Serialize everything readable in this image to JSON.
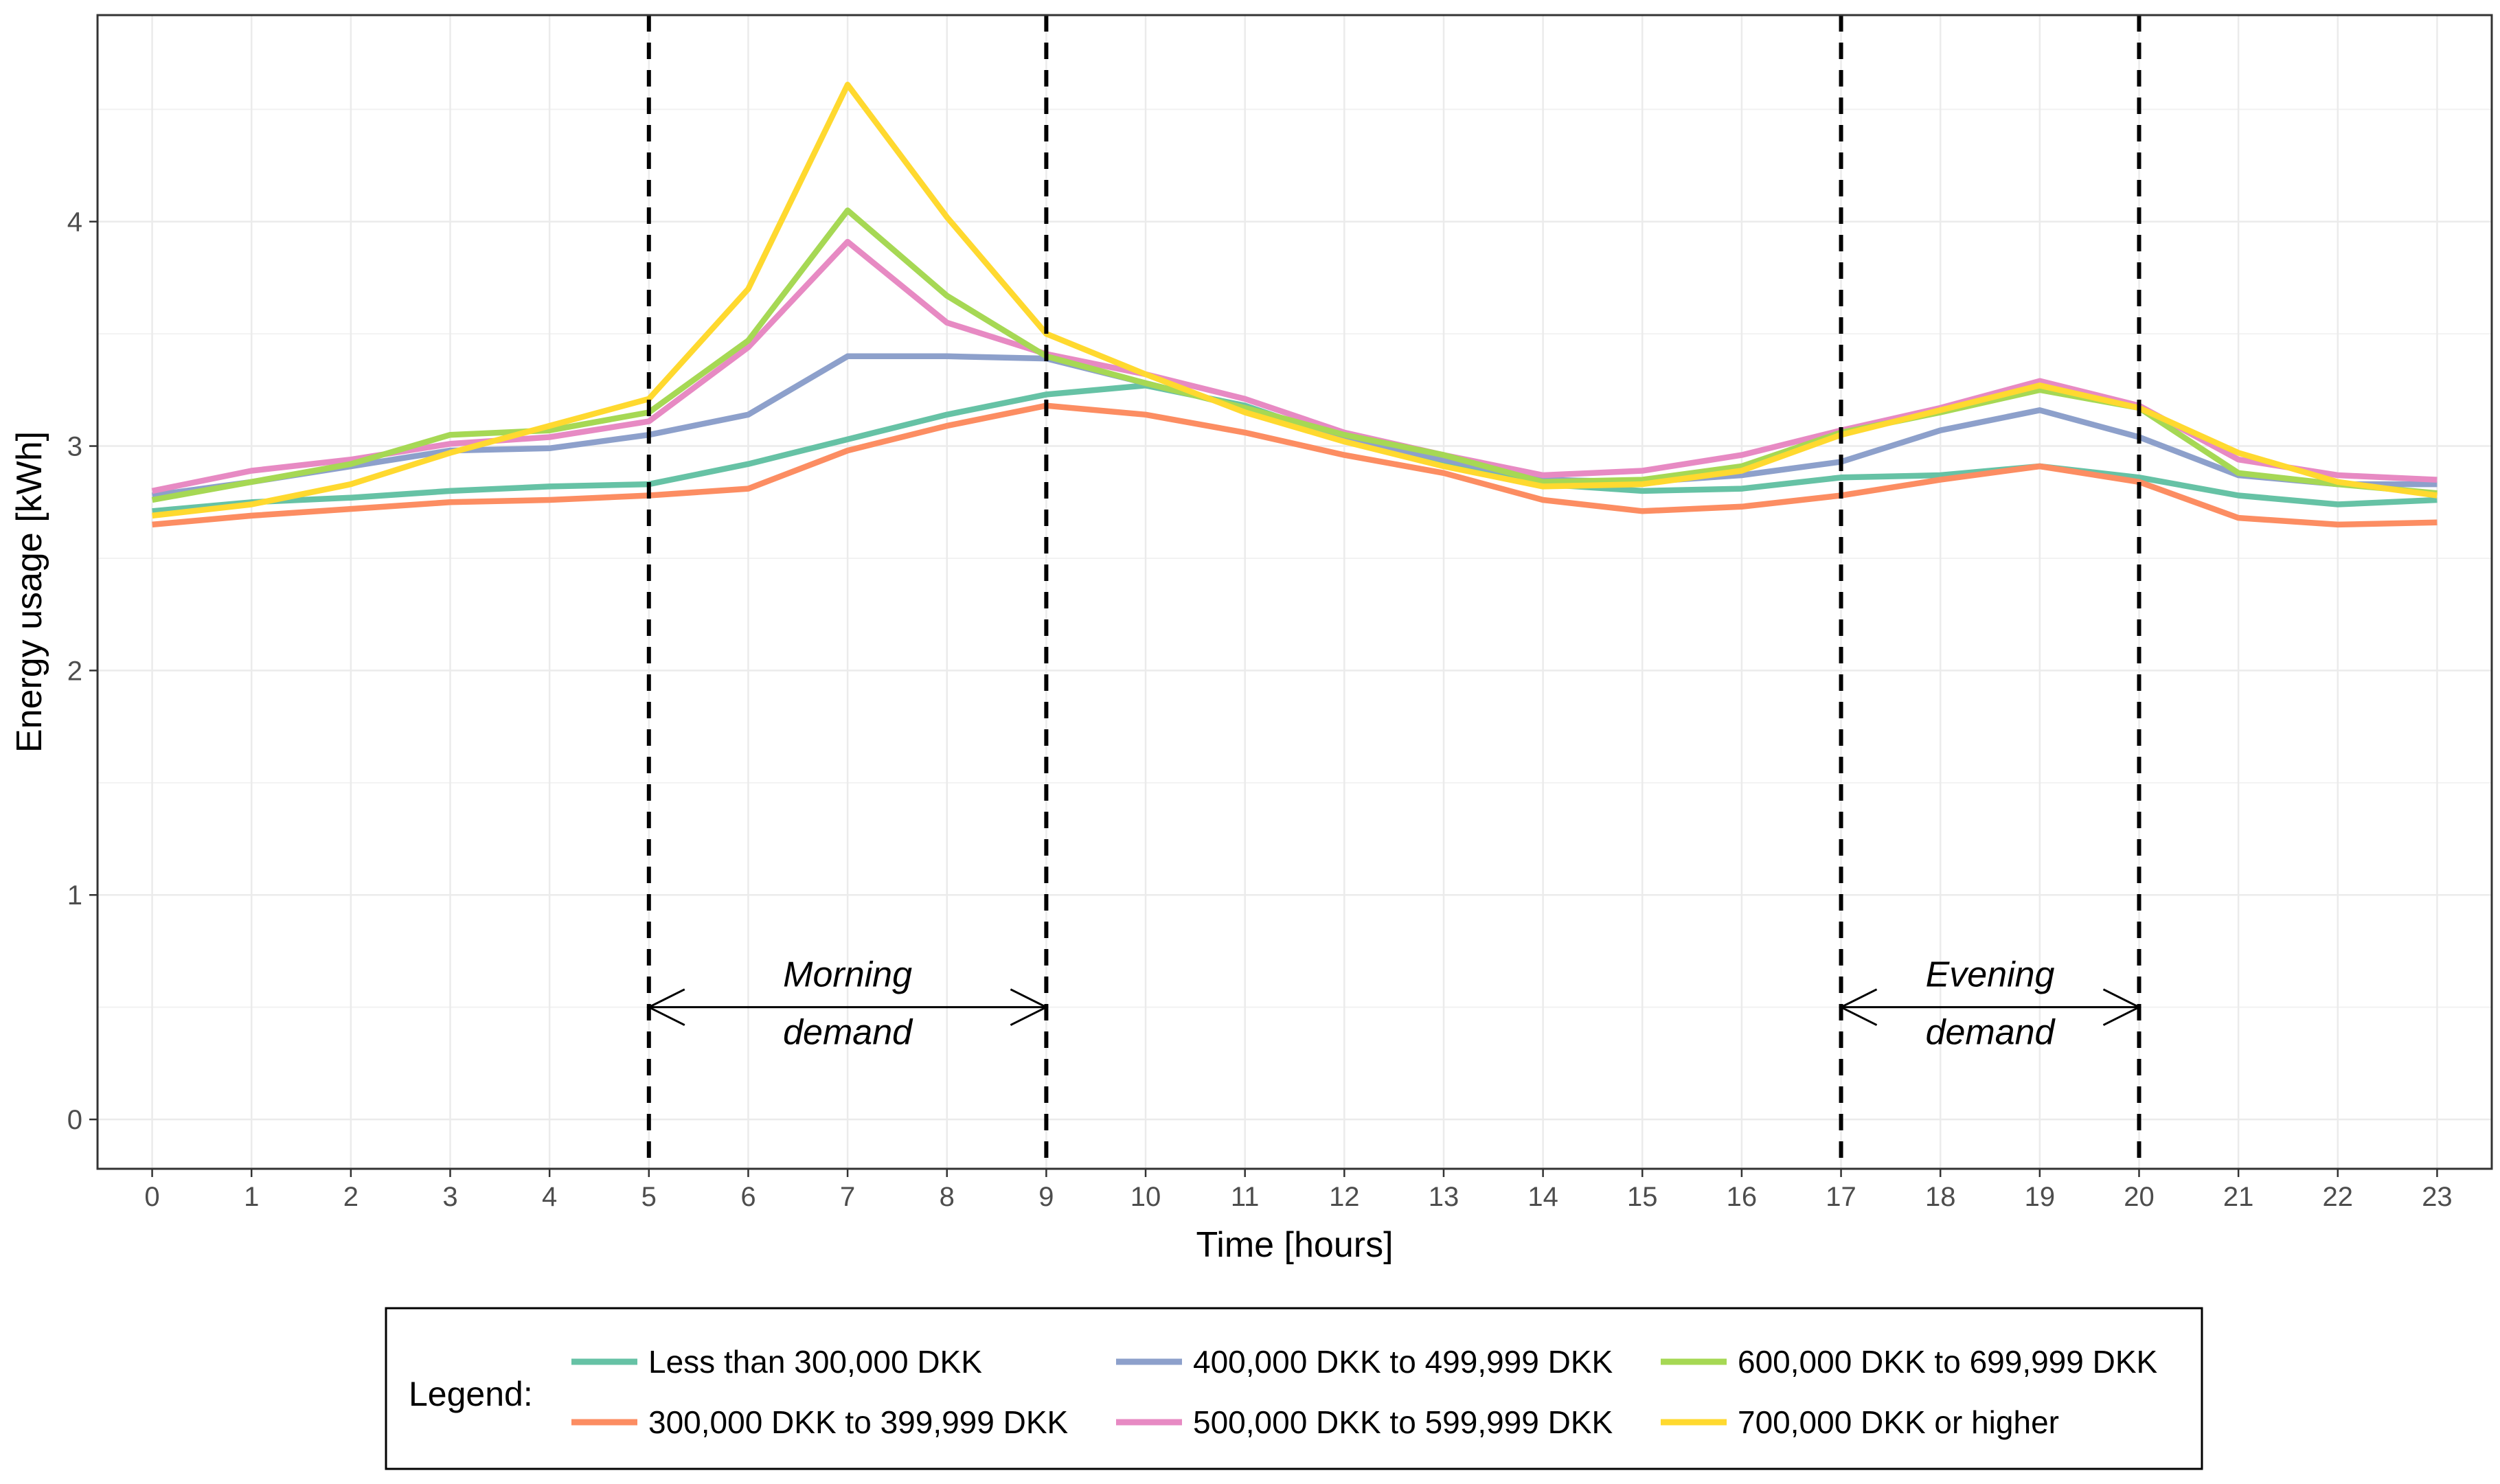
{
  "chart_data": {
    "type": "line",
    "xlabel": "Time [hours]",
    "ylabel": "Energy usage [kWh]",
    "xlim": [
      -0.55,
      23.55
    ],
    "ylim": [
      -0.22,
      4.92
    ],
    "xticks": [
      0,
      1,
      2,
      3,
      4,
      5,
      6,
      7,
      8,
      9,
      10,
      11,
      12,
      13,
      14,
      15,
      16,
      17,
      18,
      19,
      20,
      21,
      22,
      23
    ],
    "yticks": [
      0,
      1,
      2,
      3,
      4
    ],
    "grid": true,
    "x": [
      0,
      1,
      2,
      3,
      4,
      5,
      6,
      7,
      8,
      9,
      10,
      11,
      12,
      13,
      14,
      15,
      16,
      17,
      18,
      19,
      20,
      21,
      22,
      23
    ],
    "series": [
      {
        "name": "Less than 300,000 DKK",
        "color": "#66c2a5",
        "values": [
          2.71,
          2.75,
          2.77,
          2.8,
          2.82,
          2.83,
          2.92,
          3.03,
          3.14,
          3.23,
          3.27,
          3.18,
          3.03,
          2.93,
          2.83,
          2.8,
          2.81,
          2.86,
          2.87,
          2.91,
          2.86,
          2.78,
          2.74,
          2.76
        ]
      },
      {
        "name": "300,000 DKK to 399,999 DKK",
        "color": "#fc8d62",
        "values": [
          2.65,
          2.69,
          2.72,
          2.75,
          2.76,
          2.78,
          2.81,
          2.98,
          3.09,
          3.18,
          3.14,
          3.06,
          2.96,
          2.88,
          2.76,
          2.71,
          2.73,
          2.78,
          2.85,
          2.91,
          2.84,
          2.68,
          2.65,
          2.66
        ]
      },
      {
        "name": "400,000 DKK to 499,999 DKK",
        "color": "#8da0cb",
        "values": [
          2.78,
          2.84,
          2.91,
          2.98,
          2.99,
          3.05,
          3.14,
          3.4,
          3.4,
          3.39,
          3.28,
          3.17,
          3.04,
          2.94,
          2.85,
          2.84,
          2.87,
          2.93,
          3.07,
          3.16,
          3.04,
          2.87,
          2.83,
          2.83
        ]
      },
      {
        "name": "500,000 DKK to 599,999 DKK",
        "color": "#e78ac3",
        "values": [
          2.8,
          2.89,
          2.94,
          3.01,
          3.04,
          3.11,
          3.44,
          3.91,
          3.55,
          3.41,
          3.32,
          3.21,
          3.06,
          2.96,
          2.87,
          2.89,
          2.96,
          3.07,
          3.17,
          3.29,
          3.18,
          2.94,
          2.87,
          2.85
        ]
      },
      {
        "name": "600,000 DKK to 699,999 DKK",
        "color": "#a6d854",
        "values": [
          2.76,
          2.84,
          2.92,
          3.05,
          3.07,
          3.15,
          3.47,
          4.05,
          3.67,
          3.4,
          3.28,
          3.17,
          3.05,
          2.96,
          2.84,
          2.85,
          2.91,
          3.06,
          3.15,
          3.25,
          3.17,
          2.88,
          2.83,
          2.79
        ]
      },
      {
        "name": "700,000 DKK or higher",
        "color": "#ffd92f",
        "values": [
          2.69,
          2.74,
          2.83,
          2.97,
          3.09,
          3.21,
          3.7,
          4.61,
          4.02,
          3.5,
          3.32,
          3.15,
          3.02,
          2.91,
          2.82,
          2.83,
          2.89,
          3.05,
          3.16,
          3.27,
          3.17,
          2.97,
          2.84,
          2.78
        ]
      }
    ],
    "vlines": [
      5,
      9,
      17,
      20
    ],
    "annotations": [
      {
        "line1": "Morning",
        "line2": "demand",
        "from": 5,
        "to": 9
      },
      {
        "line1": "Evening",
        "line2": "demand",
        "from": 17,
        "to": 20
      }
    ],
    "legend_title": "Legend:",
    "legend_position": "bottom"
  }
}
